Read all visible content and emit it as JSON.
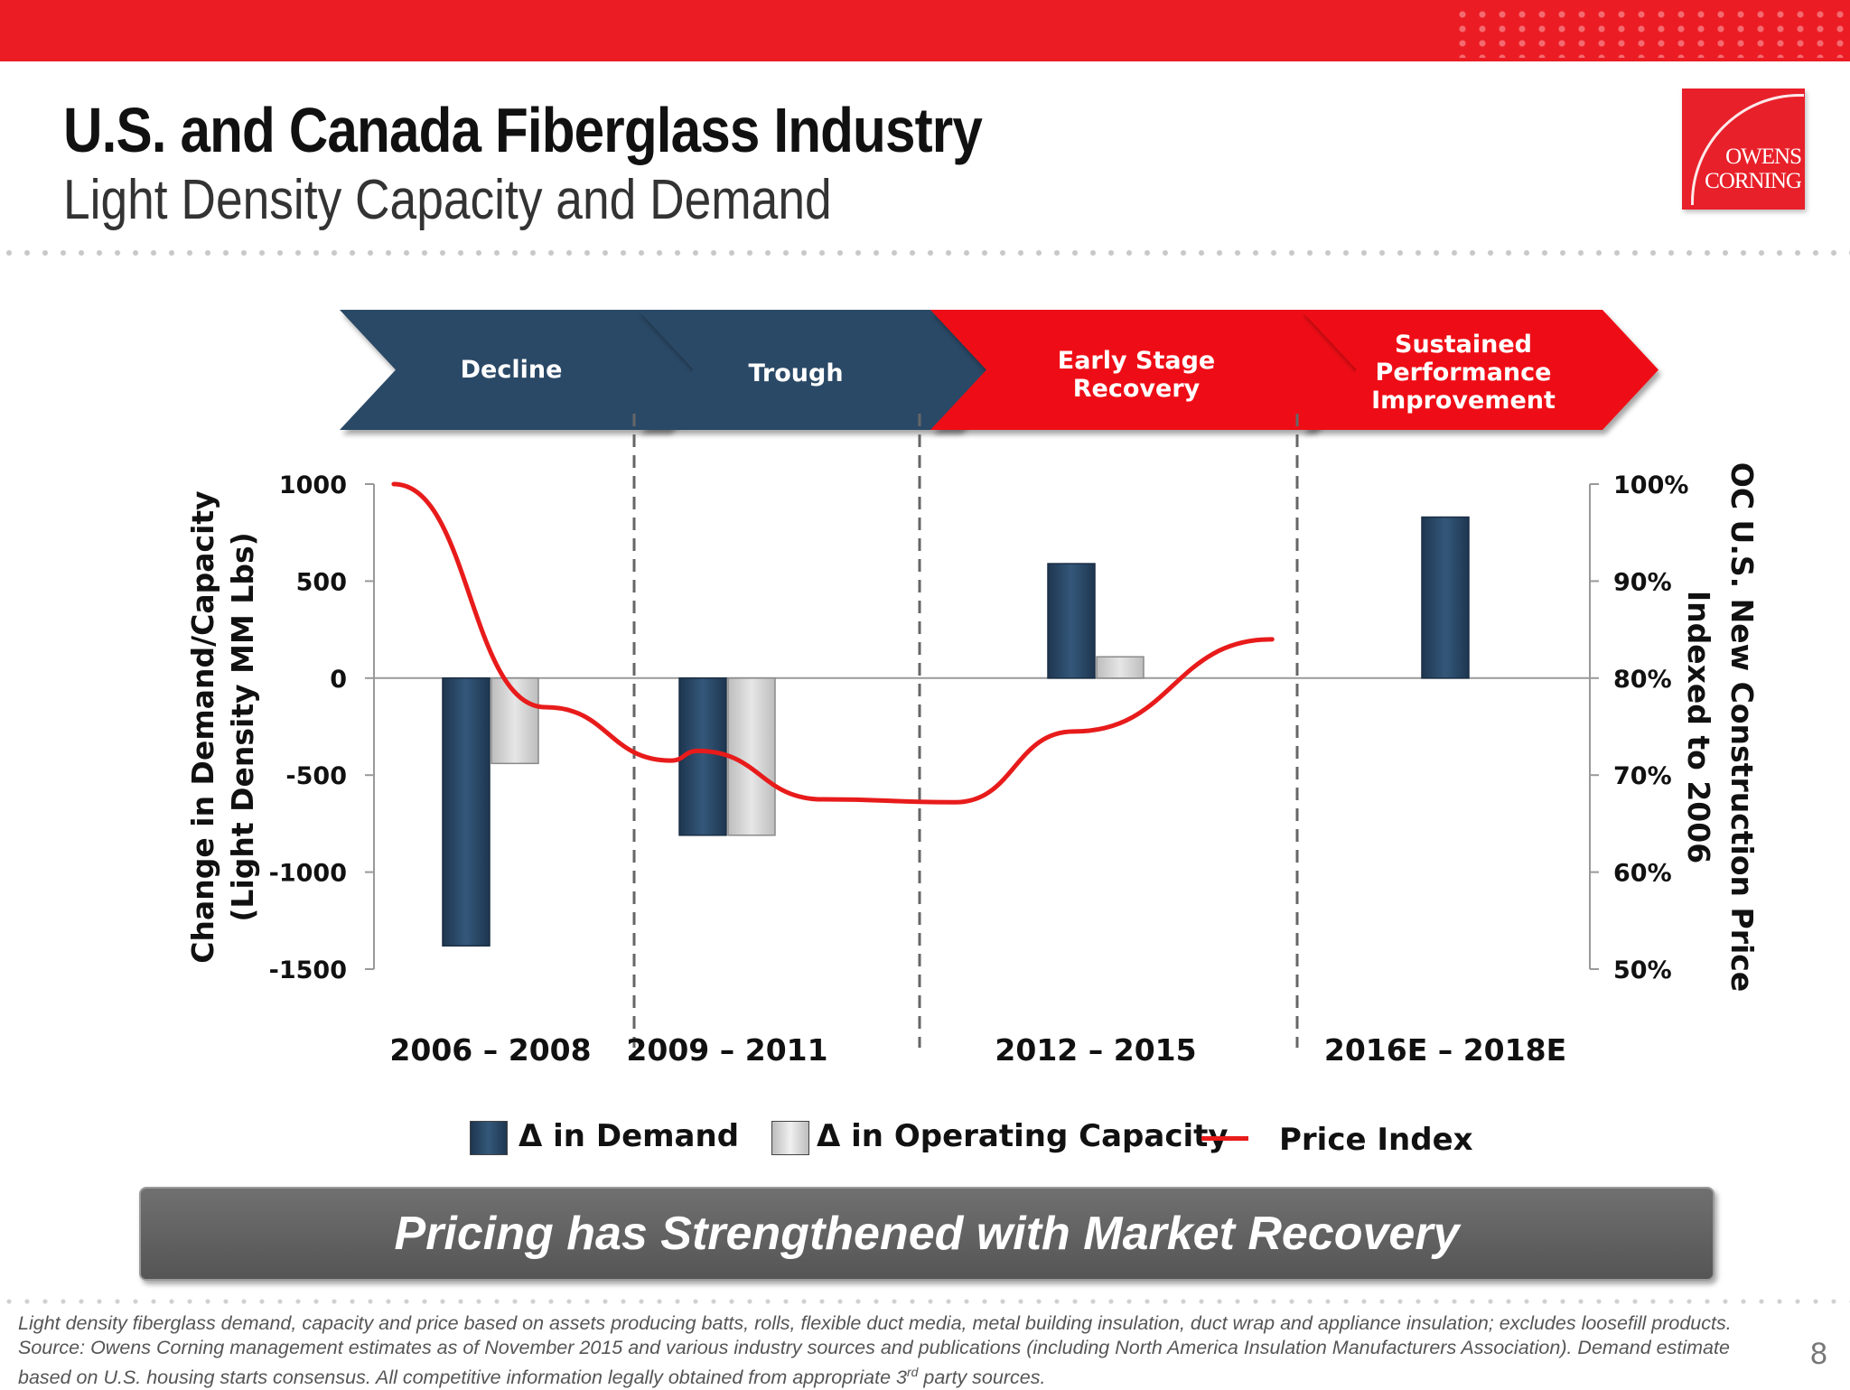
{
  "header": {
    "title": "U.S. and Canada Fiberglass Industry",
    "subtitle": "Light Density Capacity and Demand",
    "brand_color": "#ec1c24"
  },
  "logo": {
    "line1": "OWENS",
    "line2": "CORNING"
  },
  "chart_data": {
    "type": "bar",
    "phases": [
      "Decline",
      "Trough",
      "Early Stage Recovery",
      "Sustained Performance Improvement"
    ],
    "phase_colors": [
      "#2c4a66",
      "#2c4a66",
      "#ee0f12",
      "#ee0f12"
    ],
    "categories": [
      "2006 – 2008",
      "2009 – 2011",
      "2012 – 2015",
      "2016E – 2018E"
    ],
    "series": [
      {
        "name": "Δ in Demand",
        "values": [
          -1380,
          -810,
          590,
          830
        ],
        "color": "#2c4a66"
      },
      {
        "name": "Δ in Operating Capacity",
        "values": [
          -440,
          -810,
          110,
          null
        ],
        "color": "#d6d6d6"
      }
    ],
    "line": {
      "name": "Price Index",
      "color": "#e81b1b",
      "axis": "right",
      "points": [
        {
          "x": 0.15,
          "y": 100.0
        },
        {
          "x": 1.3,
          "y": 77.0
        },
        {
          "x": 2.25,
          "y": 71.5
        },
        {
          "x": 2.45,
          "y": 72.5
        },
        {
          "x": 3.4,
          "y": 67.5
        },
        {
          "x": 4.4,
          "y": 67.2
        },
        {
          "x": 5.3,
          "y": 74.5
        },
        {
          "x": 6.8,
          "y": 84.0
        }
      ]
    },
    "y_left": {
      "label_line1": "Change in Demand/Capacity",
      "label_line2": "(Light Density MM Lbs)",
      "ticks": [
        "1000",
        "500",
        "0",
        "-500",
        "-1000",
        "-1500"
      ],
      "range": [
        -1500,
        1000
      ]
    },
    "y_right": {
      "label_line1": "OC U.S. New Construction Price",
      "label_line2": "Indexed to 2006",
      "ticks": [
        "100%",
        "90%",
        "80%",
        "70%",
        "60%",
        "50%"
      ],
      "range": [
        50,
        100
      ]
    },
    "legend": [
      "Δ in Demand",
      "Δ in Operating Capacity",
      "Price Index"
    ],
    "grid": false
  },
  "banner": {
    "text": "Pricing has Strengthened with Market Recovery"
  },
  "footnote": {
    "text_before_sup": "Light density fiberglass demand, capacity and price based on assets producing batts, rolls, flexible duct media, metal building insulation, duct wrap and appliance insulation; excludes loosefill products. Source: Owens Corning management estimates as of November 2015  and various industry sources and publications (including North America Insulation Manufacturers Association). Demand estimate based on U.S. housing starts consensus. All competitive information legally obtained from appropriate 3",
    "sup": "rd",
    "text_after_sup": " party sources."
  },
  "page_number": "8"
}
